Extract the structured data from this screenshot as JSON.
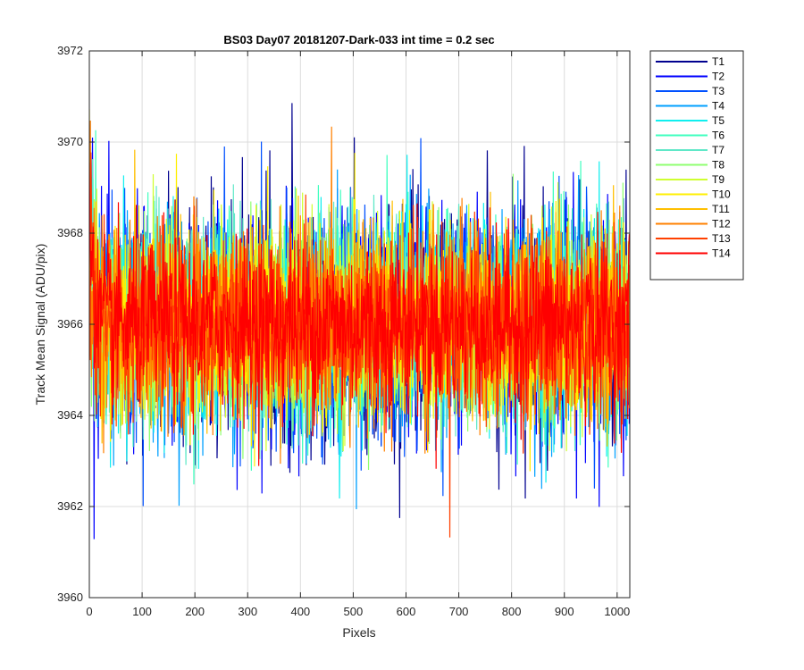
{
  "chart_data": {
    "type": "line",
    "title": "BS03 Day07 20181207-Dark-033 int time = 0.2 sec",
    "xlabel": "Pixels",
    "ylabel": "Track Mean Signal (ADU/pix)",
    "xlim": [
      0,
      1024
    ],
    "ylim": [
      3960,
      3972
    ],
    "xticks": [
      0,
      100,
      200,
      300,
      400,
      500,
      600,
      700,
      800,
      900,
      1000
    ],
    "yticks": [
      3960,
      3962,
      3964,
      3966,
      3968,
      3970,
      3972
    ],
    "grid": true,
    "legend_position": "outside-top-right",
    "noise_mean": 3966,
    "series": [
      {
        "name": "T1",
        "color": "#00008f",
        "amplitude": 1.7
      },
      {
        "name": "T2",
        "color": "#0000ff",
        "amplitude": 1.7
      },
      {
        "name": "T3",
        "color": "#0050ff",
        "amplitude": 1.6
      },
      {
        "name": "T4",
        "color": "#00a0ff",
        "amplitude": 1.6
      },
      {
        "name": "T5",
        "color": "#10efef",
        "amplitude": 1.5
      },
      {
        "name": "T6",
        "color": "#40ffbf",
        "amplitude": 1.5
      },
      {
        "name": "T7",
        "color": "#60e8c8",
        "amplitude": 1.45
      },
      {
        "name": "T8",
        "color": "#8fff70",
        "amplitude": 1.45
      },
      {
        "name": "T9",
        "color": "#cfff30",
        "amplitude": 1.4
      },
      {
        "name": "T10",
        "color": "#ffef00",
        "amplitude": 1.4
      },
      {
        "name": "T11",
        "color": "#ffbf00",
        "amplitude": 1.35
      },
      {
        "name": "T12",
        "color": "#ff8000",
        "amplitude": 1.35
      },
      {
        "name": "T13",
        "color": "#ff4000",
        "amplitude": 1.3
      },
      {
        "name": "T14",
        "color": "#ff0000",
        "amplitude": 1.25
      }
    ]
  }
}
